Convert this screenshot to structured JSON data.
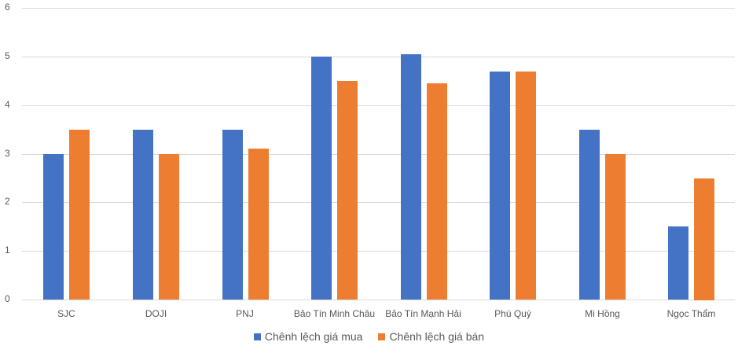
{
  "chart_data": {
    "type": "bar",
    "title": "",
    "xlabel": "",
    "ylabel": "",
    "ylim": [
      0,
      6
    ],
    "yticks": [
      0,
      1,
      2,
      3,
      4,
      5,
      6
    ],
    "grid": true,
    "legend_position": "bottom",
    "categories": [
      "SJC",
      "DOJI",
      "PNJ",
      "Bảo Tín Minh Châu",
      "Bảo Tín Mạnh Hải",
      "Phú Quý",
      "Mi Hồng",
      "Ngọc Thẩm"
    ],
    "series": [
      {
        "name": "Chênh lệch giá mua",
        "color": "#4472C4",
        "values": [
          3.0,
          3.5,
          3.5,
          5.0,
          5.05,
          4.7,
          3.5,
          1.5
        ]
      },
      {
        "name": "Chênh lệch giá bán",
        "color": "#ED7D31",
        "values": [
          3.5,
          3.0,
          3.1,
          4.5,
          4.45,
          4.7,
          3.0,
          2.5
        ]
      }
    ]
  }
}
